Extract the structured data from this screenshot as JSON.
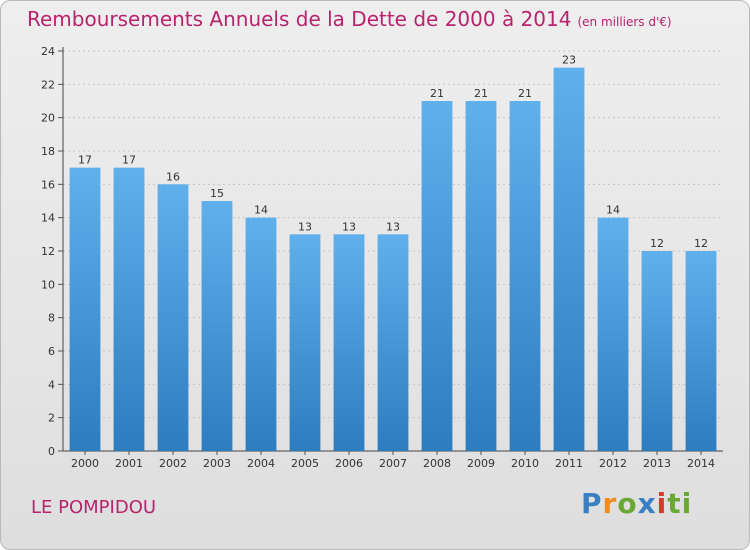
{
  "title": "Remboursements Annuels de la Dette de 2000 à 2014",
  "subtitle": "(en milliers d'€)",
  "commune": "LE POMPIDOU",
  "logo": [
    "P",
    "r",
    "o",
    "x",
    "i",
    "ti"
  ],
  "colors": {
    "title": "#b8236e",
    "bar_top": "#5fb0ec",
    "bar_bottom": "#2c7dc0"
  },
  "chart_data": {
    "type": "bar",
    "title": "Remboursements Annuels de la Dette de 2000 à 2014",
    "xlabel": "",
    "ylabel": "",
    "categories": [
      "2000",
      "2001",
      "2002",
      "2003",
      "2004",
      "2005",
      "2006",
      "2007",
      "2008",
      "2009",
      "2010",
      "2011",
      "2012",
      "2013",
      "2014"
    ],
    "values": [
      17,
      17,
      16,
      15,
      14,
      13,
      13,
      13,
      21,
      21,
      21,
      23,
      14,
      12,
      12
    ],
    "ylim": [
      0,
      24
    ],
    "yticks": [
      0,
      2,
      4,
      6,
      8,
      10,
      12,
      14,
      16,
      18,
      20,
      22,
      24
    ],
    "grid": true
  }
}
